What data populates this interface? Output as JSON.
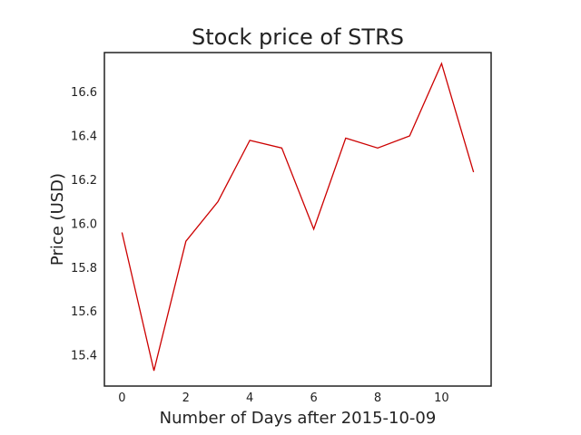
{
  "chart_data": {
    "type": "line",
    "title": "Stock price of STRS",
    "xlabel": "Number of Days after 2015-10-09",
    "ylabel": "Price (USD)",
    "x": [
      0,
      1,
      2,
      3,
      4,
      5,
      6,
      7,
      8,
      9,
      10,
      11
    ],
    "series": [
      {
        "values": [
          15.96,
          15.33,
          15.92,
          16.1,
          16.38,
          16.345,
          15.975,
          16.39,
          16.345,
          16.4,
          16.73,
          16.235
        ],
        "color": "#cc0000"
      }
    ],
    "xlim": [
      -0.55,
      11.55
    ],
    "ylim": [
      15.26,
      16.78
    ],
    "xticks": [
      0,
      2,
      4,
      6,
      8,
      10
    ],
    "yticks": [
      15.4,
      15.6,
      15.8,
      16.0,
      16.2,
      16.4,
      16.6
    ],
    "xtick_labels": [
      "0",
      "2",
      "4",
      "6",
      "8",
      "10"
    ],
    "ytick_labels": [
      "15.4",
      "15.6",
      "15.8",
      "16.0",
      "16.2",
      "16.4",
      "16.6"
    ],
    "grid": false,
    "legend": "none"
  }
}
